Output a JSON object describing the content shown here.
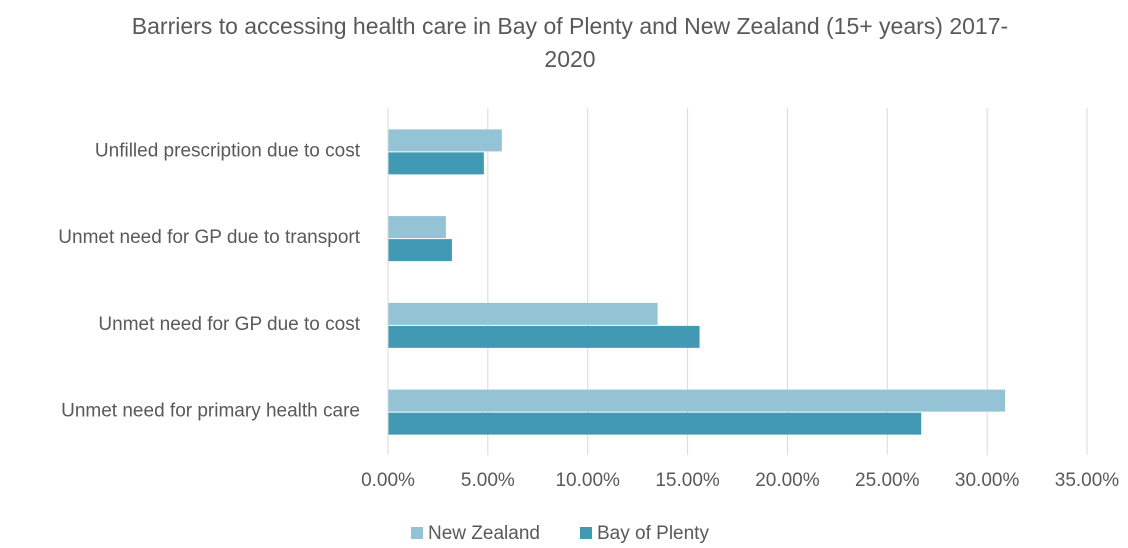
{
  "chart_data": {
    "type": "bar",
    "orientation": "horizontal",
    "title": "Barriers to accessing health care in Bay of Plenty and New Zealand (15+ years) 2017-2020",
    "categories": [
      "Unfilled prescription due to cost",
      "Unmet need for GP due to transport",
      "Unmet need for GP due to cost",
      "Unmet need for primary health care"
    ],
    "series": [
      {
        "name": "New Zealand",
        "color": "#93c3d5",
        "values": [
          5.7,
          2.9,
          13.5,
          30.9
        ]
      },
      {
        "name": "Bay of Plenty",
        "color": "#4199b3",
        "values": [
          4.8,
          3.2,
          15.6,
          26.7
        ]
      }
    ],
    "xlim": [
      0,
      35
    ],
    "xticks": [
      {
        "value": 0,
        "label": "0.00%"
      },
      {
        "value": 5,
        "label": "5.00%"
      },
      {
        "value": 10,
        "label": "10.00%"
      },
      {
        "value": 15,
        "label": "15.00%"
      },
      {
        "value": 20,
        "label": "20.00%"
      },
      {
        "value": 25,
        "label": "25.00%"
      },
      {
        "value": 30,
        "label": "30.00%"
      },
      {
        "value": 35,
        "label": "35.00%"
      }
    ],
    "grid": true,
    "legend": "bottom"
  }
}
